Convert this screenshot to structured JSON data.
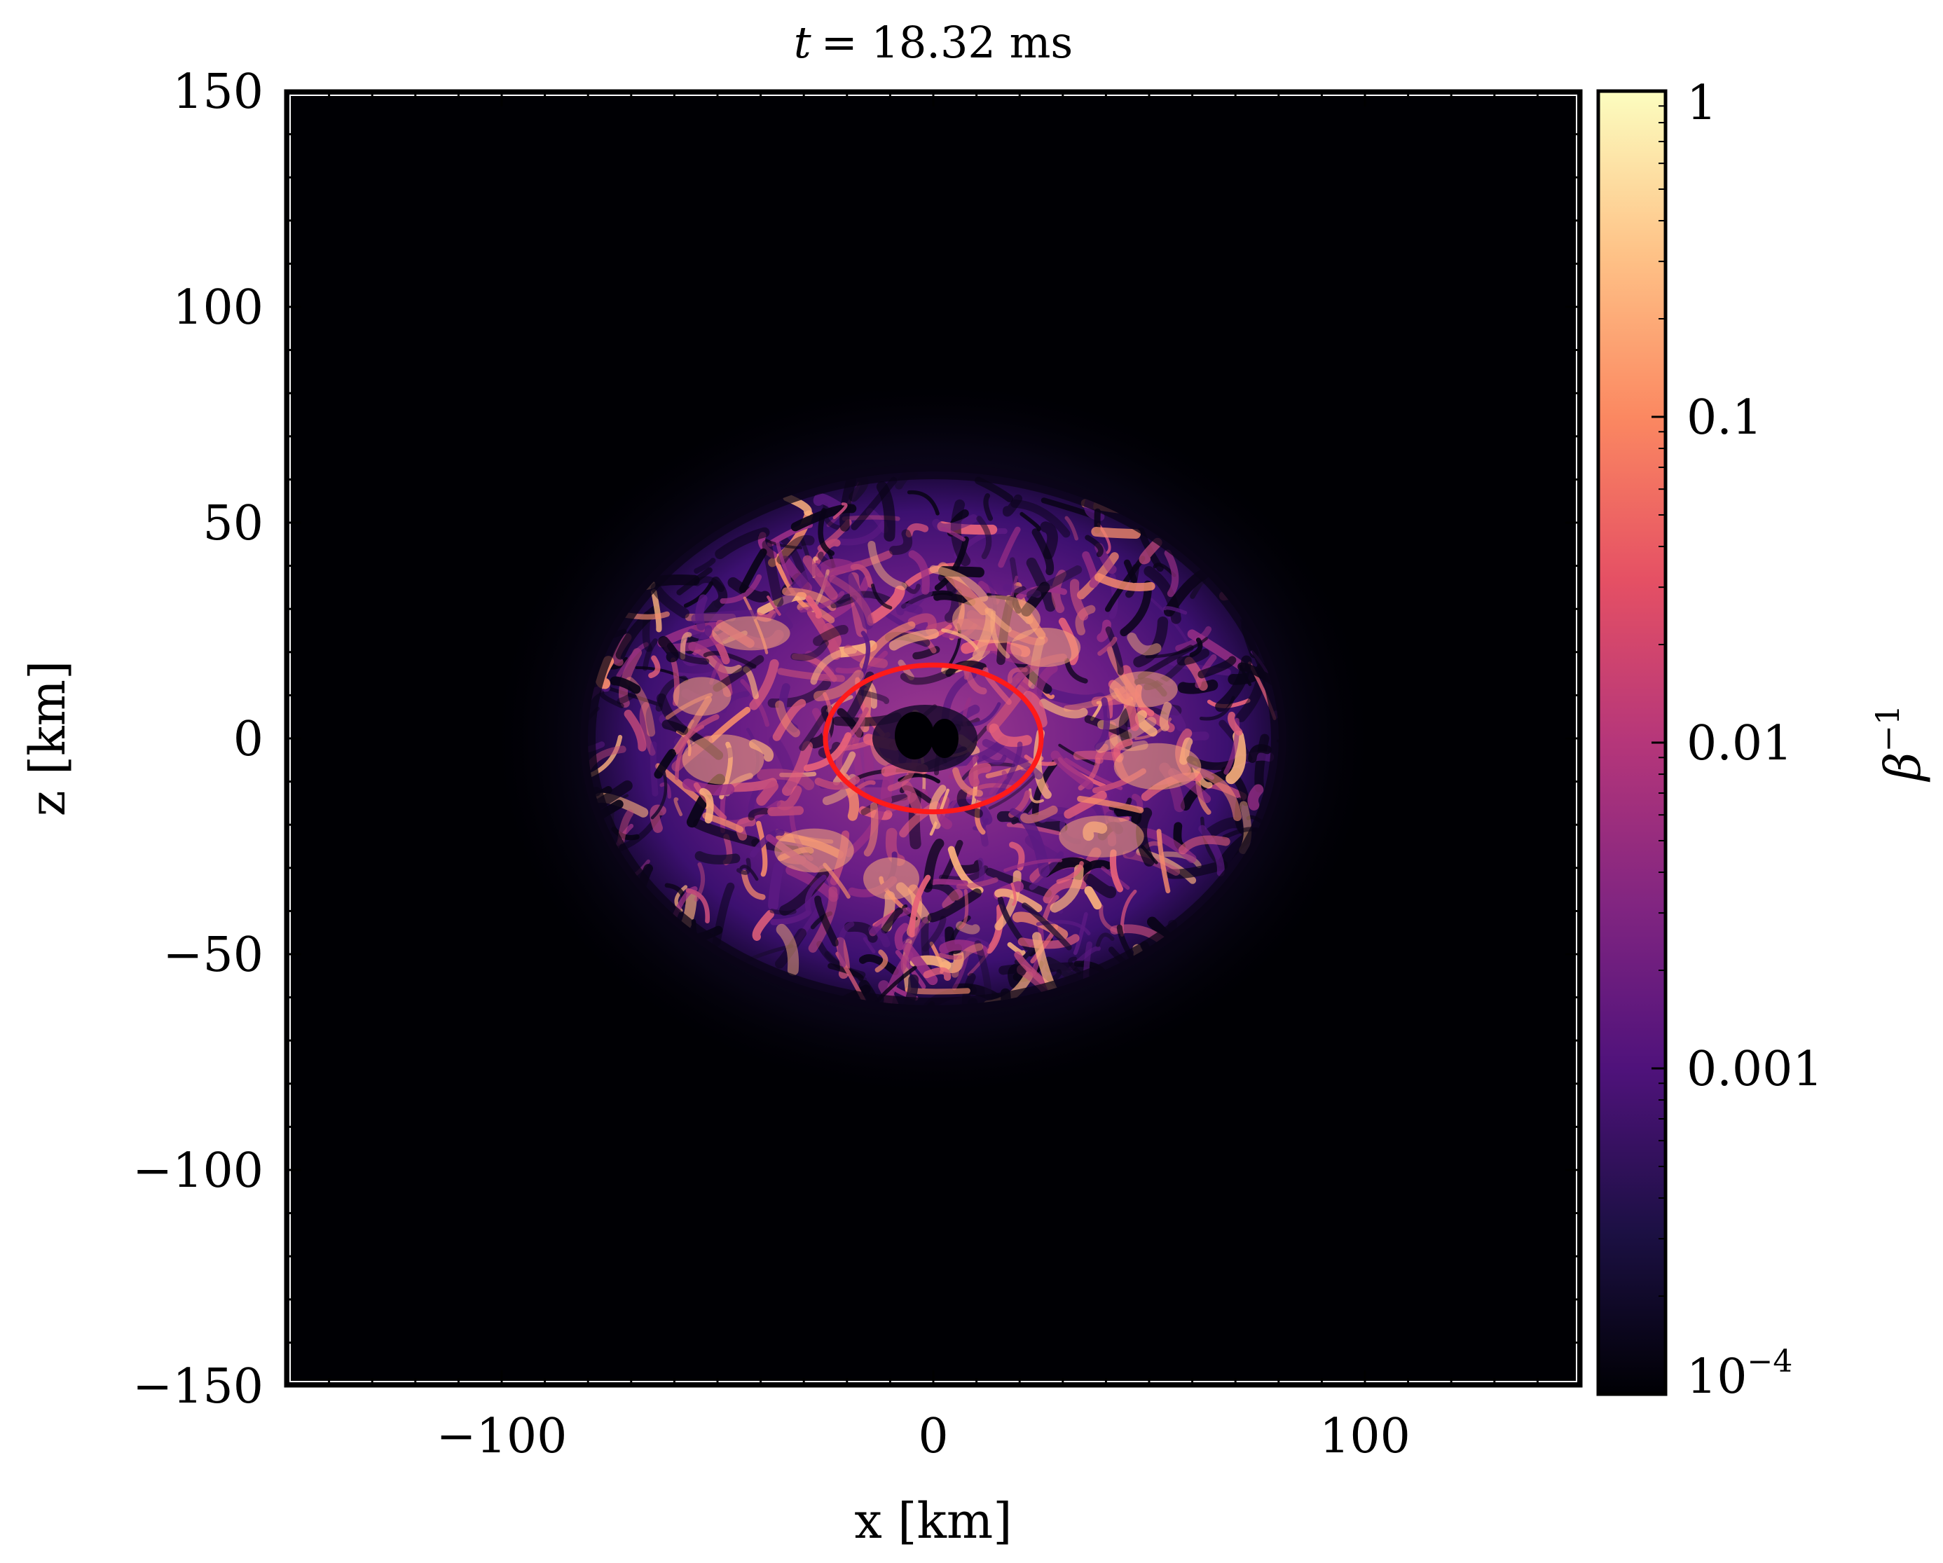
{
  "chart_data": {
    "type": "heatmap",
    "title": "t = 18.32 ms",
    "title_var": "t",
    "title_value": "= 18.32 ms",
    "xlabel": "x [km]",
    "ylabel": "z [km]",
    "xlim": [
      -150,
      150
    ],
    "ylim": [
      -150,
      150
    ],
    "xticks": [
      {
        "value": -100,
        "label": "−100"
      },
      {
        "value": 0,
        "label": "0"
      },
      {
        "value": 100,
        "label": "100"
      }
    ],
    "yticks": [
      {
        "value": 150,
        "label": "150"
      },
      {
        "value": 100,
        "label": "100"
      },
      {
        "value": 50,
        "label": "50"
      },
      {
        "value": 0,
        "label": "0"
      },
      {
        "value": -50,
        "label": "−50"
      },
      {
        "value": -100,
        "label": "−100"
      },
      {
        "value": -150,
        "label": "−150"
      }
    ],
    "colorbar": {
      "label_symbol": "β",
      "label_exponent": "−1",
      "scale": "log",
      "range": [
        0.0001,
        1
      ],
      "colormap": "magma",
      "ticks": [
        {
          "value": 1,
          "label": "1"
        },
        {
          "value": 0.1,
          "label": "0.1"
        },
        {
          "value": 0.01,
          "label": "0.01"
        },
        {
          "value": 0.001,
          "label": "0.001"
        },
        {
          "value": 0.0001,
          "label": "10",
          "exponent": "−4"
        }
      ]
    },
    "field_description": {
      "background_value": 0.0001,
      "region_center_km": [
        0,
        0
      ],
      "region_semi_axes_km": [
        80,
        62
      ],
      "region_x_extent_km": [
        -80,
        85
      ]
    },
    "contour": {
      "color": "#ff1a1a",
      "center_km": [
        0,
        0
      ],
      "semi_axes_km": [
        25,
        17
      ]
    },
    "colors": {
      "background": "#000004",
      "frame": "#000000",
      "magma": [
        "#000004",
        "#1c1044",
        "#4f127b",
        "#812581",
        "#b5367a",
        "#e55064",
        "#fb8861",
        "#fec287",
        "#fcfdbf"
      ]
    }
  }
}
